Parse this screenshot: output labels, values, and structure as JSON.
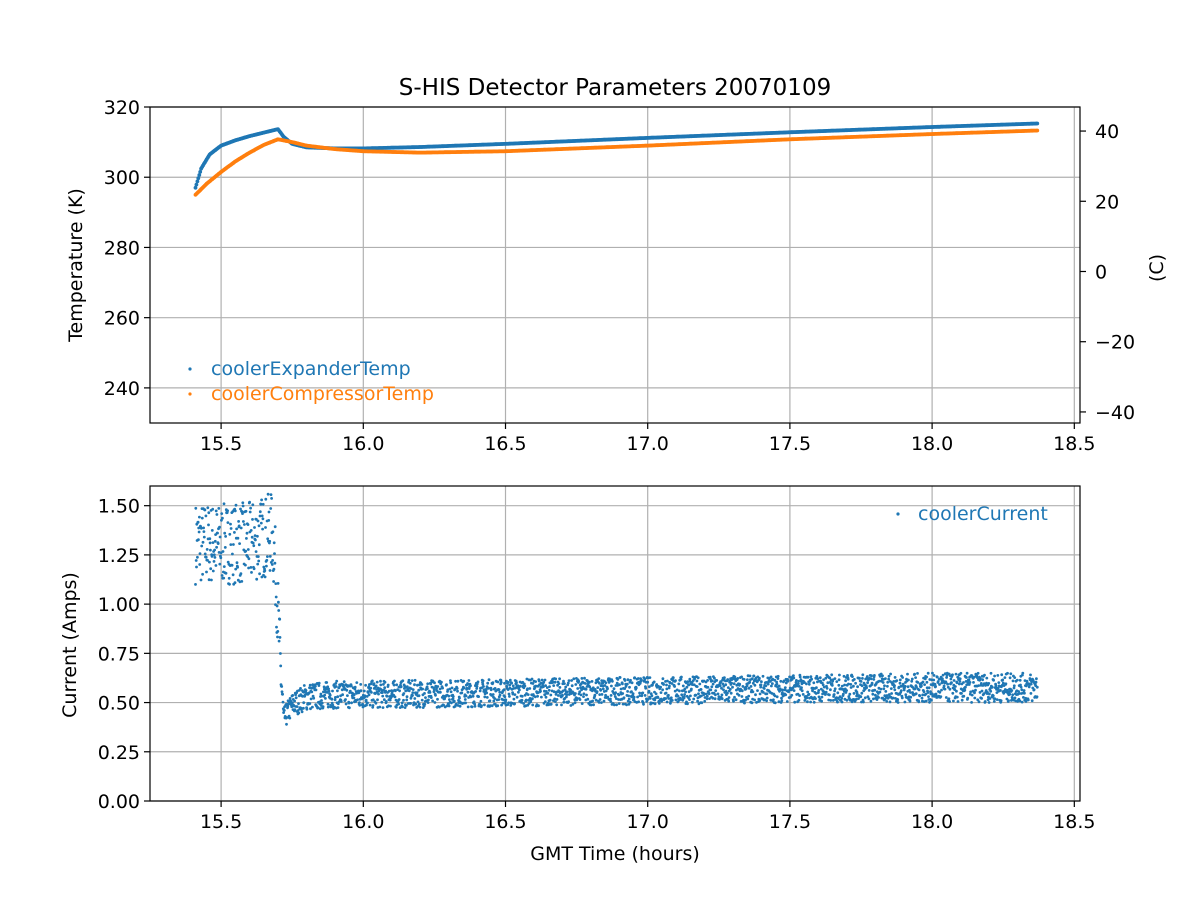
{
  "chart_data": [
    {
      "type": "scatter",
      "title": "S-HIS Detector Parameters 20070109",
      "xlabel": "",
      "ylabel": "Temperature (K)",
      "y2label": "(C)",
      "xlim": [
        15.25,
        18.52
      ],
      "ylim": [
        230,
        320
      ],
      "y2lim": [
        -43.15,
        46.85
      ],
      "xticks": [
        15.5,
        16.0,
        16.5,
        17.0,
        17.5,
        18.0,
        18.5
      ],
      "xtick_labels": [
        "15.5",
        "16.0",
        "16.5",
        "17.0",
        "17.5",
        "18.0",
        "18.5"
      ],
      "yticks": [
        240,
        260,
        280,
        300,
        320
      ],
      "ytick_labels": [
        "240",
        "260",
        "280",
        "300",
        "320"
      ],
      "y2ticks": [
        -40,
        -20,
        0,
        20,
        40
      ],
      "y2tick_labels": [
        "−40",
        "−20",
        "0",
        "20",
        "40"
      ],
      "grid": true,
      "legend_position": "lower-left",
      "series": [
        {
          "name": "coolerExpanderTemp",
          "color": "#1f77b4",
          "x": [
            15.41,
            15.43,
            15.46,
            15.5,
            15.55,
            15.6,
            15.65,
            15.7,
            15.72,
            15.75,
            15.8,
            15.9,
            16.0,
            16.2,
            16.5,
            17.0,
            17.5,
            18.0,
            18.37
          ],
          "y": [
            297,
            302.5,
            306.5,
            309,
            310.5,
            311.7,
            312.7,
            313.7,
            311.5,
            309.5,
            308.5,
            308.2,
            308.2,
            308.6,
            309.5,
            311.2,
            312.8,
            314.3,
            315.3
          ]
        },
        {
          "name": "coolerCompressorTemp",
          "color": "#ff7f0e",
          "x": [
            15.41,
            15.45,
            15.5,
            15.55,
            15.6,
            15.65,
            15.7,
            15.75,
            15.8,
            15.9,
            16.0,
            16.2,
            16.5,
            17.0,
            17.5,
            18.0,
            18.37
          ],
          "y": [
            295,
            298.2,
            301.5,
            304.5,
            307,
            309.2,
            310.8,
            310,
            309,
            308,
            307.4,
            307,
            307.4,
            309,
            310.8,
            312.3,
            313.3
          ]
        }
      ]
    },
    {
      "type": "scatter",
      "title": "",
      "xlabel": "GMT Time (hours)",
      "ylabel": "Current (Amps)",
      "xlim": [
        15.25,
        18.52
      ],
      "ylim": [
        0,
        1.6
      ],
      "xticks": [
        15.5,
        16.0,
        16.5,
        17.0,
        17.5,
        18.0,
        18.5
      ],
      "xtick_labels": [
        "15.5",
        "16.0",
        "16.5",
        "17.0",
        "17.5",
        "18.0",
        "18.5"
      ],
      "yticks": [
        0,
        0.25,
        0.5,
        0.75,
        1.0,
        1.25,
        1.5
      ],
      "ytick_labels": [
        "0.00",
        "0.25",
        "0.50",
        "0.75",
        "1.00",
        "1.25",
        "1.50"
      ],
      "grid": true,
      "legend_position": "upper-right",
      "series": [
        {
          "name": "coolerCurrent",
          "color": "#1f77b4",
          "band": {
            "x": [
              15.41,
              15.5,
              15.6,
              15.68,
              15.69,
              15.7,
              15.71,
              15.72,
              15.73,
              15.75,
              15.8,
              15.9,
              16.0,
              16.5,
              17.0,
              17.5,
              18.0,
              18.37
            ],
            "low": [
              1.1,
              1.1,
              1.1,
              1.15,
              1.0,
              0.75,
              0.5,
              0.37,
              0.38,
              0.43,
              0.46,
              0.47,
              0.47,
              0.48,
              0.49,
              0.5,
              0.5,
              0.5
            ],
            "high": [
              1.52,
              1.51,
              1.52,
              1.57,
              1.4,
              1.15,
              0.8,
              0.47,
              0.5,
              0.55,
              0.6,
              0.61,
              0.61,
              0.62,
              0.63,
              0.64,
              0.65,
              0.65
            ]
          }
        }
      ]
    }
  ]
}
